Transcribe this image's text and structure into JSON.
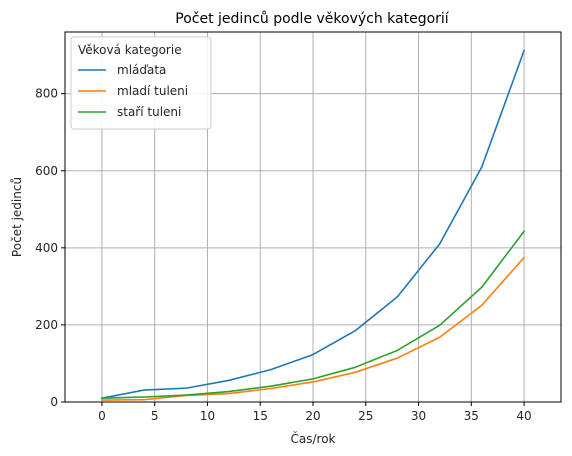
{
  "chart_data": {
    "type": "line",
    "title": "Počet jedinců podle věkových kategorií",
    "xlabel": "Čas/rok",
    "ylabel": "Počet jedinců",
    "x": [
      0,
      4,
      8,
      12,
      16,
      20,
      24,
      28,
      32,
      36,
      40
    ],
    "xlim": [
      -3.5,
      43.5
    ],
    "ylim": [
      0,
      960
    ],
    "xticks": [
      0,
      5,
      10,
      15,
      20,
      25,
      30,
      35,
      40
    ],
    "yticks": [
      0,
      200,
      400,
      600,
      800
    ],
    "grid": true,
    "legend": {
      "title": "Věková kategorie",
      "placement": "top-left"
    },
    "series": [
      {
        "name": "mláďata",
        "color": "#1f77b4",
        "values": [
          10,
          31,
          36,
          56,
          84,
          123,
          185,
          273,
          410,
          610,
          912
        ]
      },
      {
        "name": "mladí tuleni",
        "color": "#ff7f0e",
        "values": [
          5,
          6,
          17,
          22,
          35,
          52,
          77,
          114,
          168,
          251,
          375
        ]
      },
      {
        "name": "staří tuleni",
        "color": "#2ca02c",
        "values": [
          10,
          13,
          18,
          27,
          41,
          60,
          90,
          134,
          199,
          298,
          443
        ]
      }
    ]
  }
}
